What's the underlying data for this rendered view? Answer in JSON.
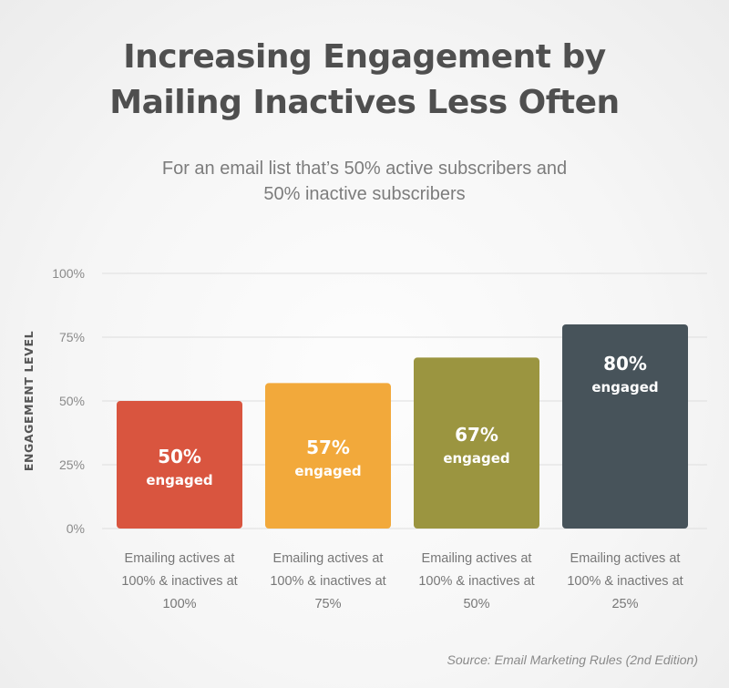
{
  "title_lines": [
    "Increasing Engagement by",
    "Mailing Inactives Less Often"
  ],
  "subtitle_lines": [
    "For an email list that’s 50% active subscribers and",
    "50% inactive subscribers"
  ],
  "source": "Source: Email Marketing Rules (2nd Edition)",
  "chart_data": {
    "type": "bar",
    "ylabel": "ENGAGEMENT LEVEL",
    "ylim": [
      0,
      100
    ],
    "yticks": [
      0,
      25,
      50,
      75,
      100
    ],
    "ytick_labels": [
      "0%",
      "25%",
      "50%",
      "75%",
      "100%"
    ],
    "grid": true,
    "categories": [
      [
        "Emailing actives at",
        "100% & inactives at",
        "100%"
      ],
      [
        "Emailing actives at",
        "100% & inactives at",
        "75%"
      ],
      [
        "Emailing actives at",
        "100% & inactives at",
        "50%"
      ],
      [
        "Emailing actives at",
        "100% & inactives at",
        "25%"
      ]
    ],
    "values": [
      50,
      57,
      67,
      80
    ],
    "value_labels": [
      "50%",
      "57%",
      "67%",
      "80%"
    ],
    "sub_label": "engaged",
    "colors": [
      "#d9553f",
      "#f2a93b",
      "#9b9540",
      "#47535a"
    ]
  }
}
